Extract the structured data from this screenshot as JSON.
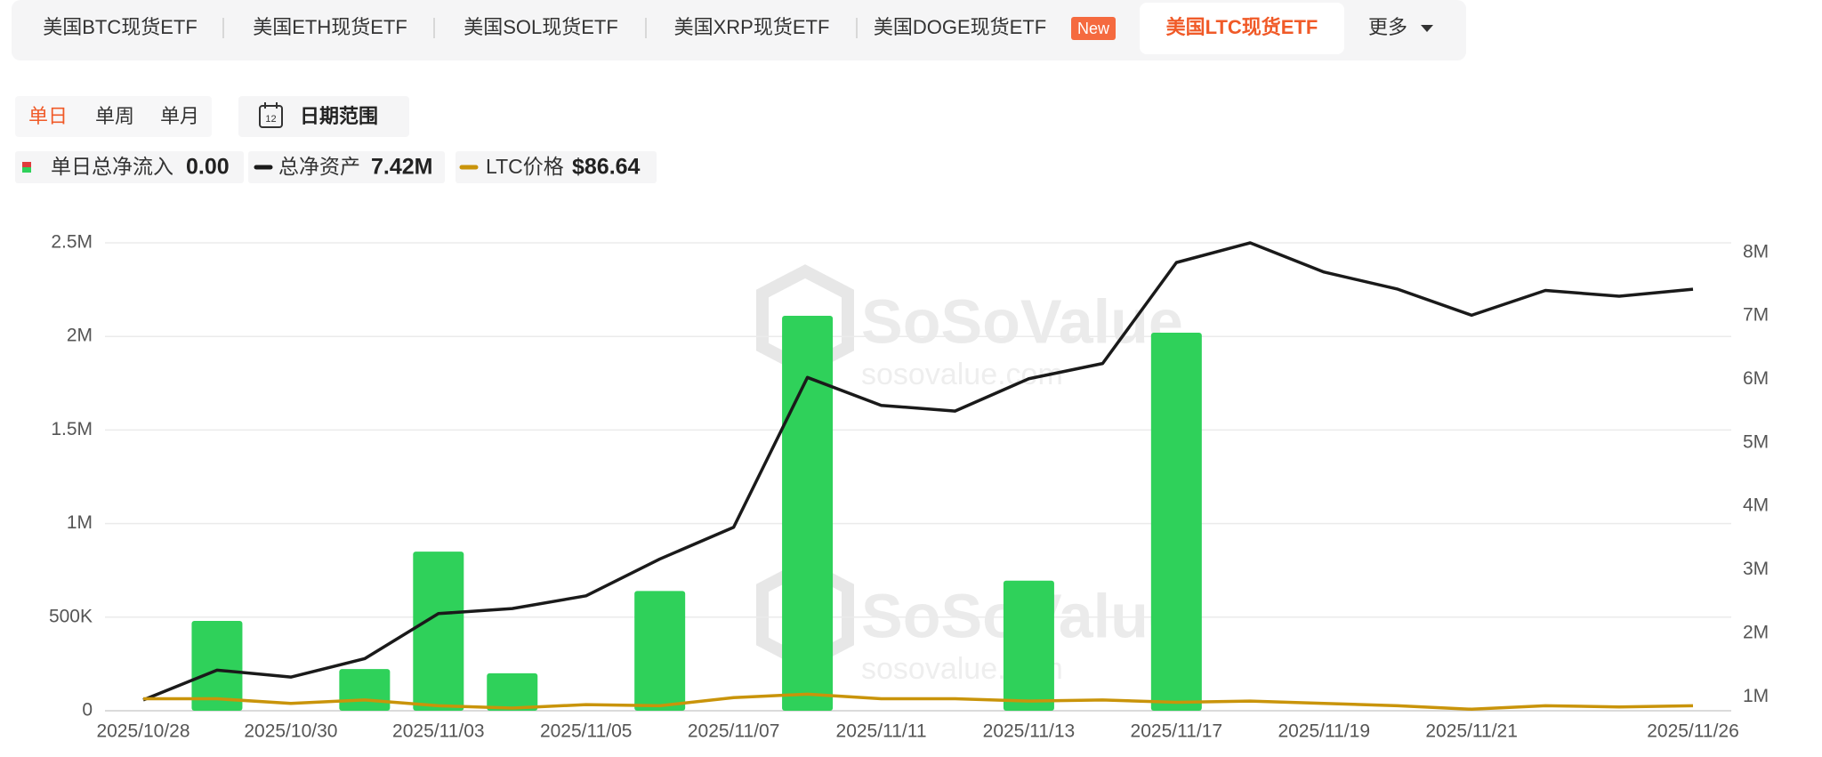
{
  "tabs": [
    "美国BTC现货ETF",
    "美国ETH现货ETF",
    "美国SOL现货ETF",
    "美国XRP现货ETF",
    "美国DOGE现货ETF",
    "美国LTC现货ETF",
    "更多"
  ],
  "active_tab": 5,
  "new_badge": "New",
  "periods": [
    "单日",
    "单周",
    "单月"
  ],
  "active_period": 0,
  "date_range": "日期范围",
  "calendar_icon": "12",
  "legend_readouts": [
    "0.00",
    "7.42M",
    "$86.64"
  ],
  "watermark": {
    "brand": "SoSoValue",
    "site": "sosovalue.com"
  },
  "chart_data": {
    "type": "bar-line",
    "categories": [
      "2025/10/28",
      null,
      "2025/10/30",
      null,
      "2025/11/03",
      null,
      "2025/11/05",
      null,
      "2025/11/07",
      null,
      "2025/11/11",
      null,
      "2025/11/13",
      null,
      "2025/11/17",
      null,
      "2025/11/19",
      null,
      "2025/11/21",
      null,
      null,
      "2025/11/26"
    ],
    "series": [
      {
        "name": "单日总净流入",
        "type": "bar",
        "axis": "y",
        "color": "#2fd15a",
        "values": [
          0,
          480000,
          0,
          223000,
          850000,
          200000,
          0,
          640000,
          0,
          2110000,
          0,
          0,
          695000,
          0,
          2020000,
          0,
          0,
          0,
          0,
          0,
          0,
          0
        ]
      },
      {
        "name": "总净资产",
        "type": "line",
        "axis": "y2",
        "color": "#1a1a1a",
        "values": [
          950000,
          1420000,
          1310000,
          1600000,
          2310000,
          2390000,
          2590000,
          3170000,
          3670000,
          6030000,
          5590000,
          5500000,
          6010000,
          6250000,
          7840000,
          8150000,
          7690000,
          7420000,
          7010000,
          7400000,
          7310000,
          7420000
        ]
      },
      {
        "name": "LTC价格",
        "type": "line",
        "axis": "y3",
        "color": "#c9940a",
        "values": [
          98.6,
          98.6,
          90.6,
          96.6,
          86.6,
          82.6,
          88.6,
          86.6,
          100.6,
          106.6,
          98.6,
          98.6,
          94.6,
          96.6,
          92.6,
          94.6,
          90.6,
          86.6,
          80.6,
          86.6,
          84.6,
          86.64
        ]
      }
    ],
    "ylim": [
      0,
      2500000
    ],
    "yticks": [
      0,
      {
        "value": 500000,
        "label": "500K"
      },
      {
        "value": 1000000,
        "label": "1M"
      },
      {
        "value": 1500000,
        "label": "1.5M"
      },
      {
        "value": 2000000,
        "label": "2M"
      },
      {
        "value": 2500000,
        "label": "2.5M"
      }
    ],
    "y2lim": [
      780000,
      8150000
    ],
    "y2ticks": [
      {
        "value": 1000000,
        "label": "1M"
      },
      {
        "value": 2000000,
        "label": "2M"
      },
      {
        "value": 3000000,
        "label": "3M"
      },
      {
        "value": 4000000,
        "label": "4M"
      },
      {
        "value": 5000000,
        "label": "5M"
      },
      {
        "value": 6000000,
        "label": "6M"
      },
      {
        "value": 7000000,
        "label": "7M"
      },
      {
        "value": 8000000,
        "label": "8M"
      }
    ],
    "y3lim": [
      78,
      884
    ],
    "grid": true
  }
}
